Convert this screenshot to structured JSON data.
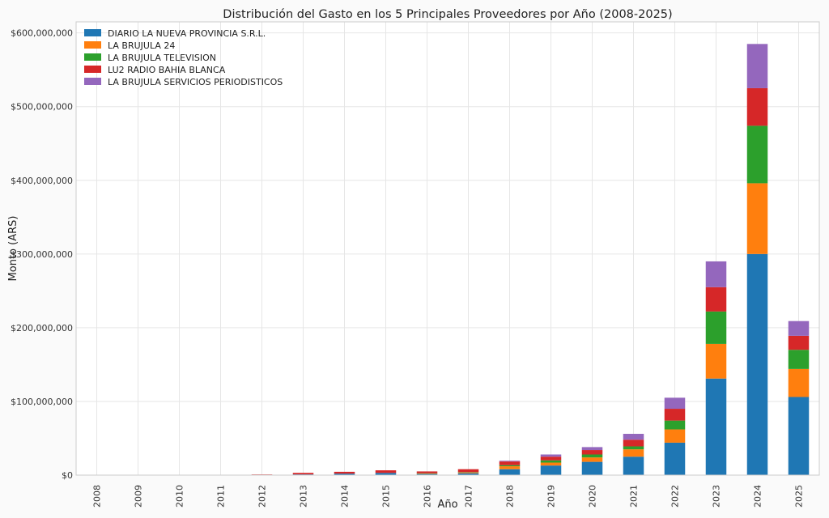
{
  "chart_data": {
    "type": "bar",
    "stacked": true,
    "title": "Distribución del Gasto en los 5 Principales Proveedores por Año (2008-2025)",
    "xlabel": "Año",
    "ylabel": "Monto (ARS)",
    "ylim": [
      0,
      615000000
    ],
    "yticks": [
      0,
      100000000,
      200000000,
      300000000,
      400000000,
      500000000,
      600000000
    ],
    "ytick_labels": [
      "$0",
      "$100,000,000",
      "$200,000,000",
      "$300,000,000",
      "$400,000,000",
      "$500,000,000",
      "$600,000,000"
    ],
    "grid": true,
    "legend_position": "top-left",
    "categories": [
      "2008",
      "2009",
      "2010",
      "2011",
      "2012",
      "2013",
      "2014",
      "2015",
      "2016",
      "2017",
      "2018",
      "2019",
      "2020",
      "2021",
      "2022",
      "2023",
      "2024",
      "2025"
    ],
    "series": [
      {
        "name": "DIARIO LA NUEVA PROVINCIA S.R.L.",
        "color": "#1f77b4",
        "values": [
          0,
          0,
          0,
          200000,
          400000,
          1000000,
          2000000,
          3000000,
          1500000,
          2500000,
          8000000,
          13000000,
          18000000,
          25000000,
          44000000,
          131000000,
          300000000,
          106000000
        ]
      },
      {
        "name": "LA BRUJULA 24",
        "color": "#ff7f0e",
        "values": [
          0,
          0,
          0,
          0,
          0,
          0,
          0,
          0,
          500000,
          1000000,
          4000000,
          4000000,
          6000000,
          10000000,
          18000000,
          47000000,
          96000000,
          38000000
        ]
      },
      {
        "name": "LA BRUJULA TELEVISION",
        "color": "#2ca02c",
        "values": [
          0,
          0,
          0,
          0,
          0,
          0,
          0,
          0,
          500000,
          500000,
          1500000,
          3000000,
          4000000,
          4000000,
          12000000,
          44000000,
          78000000,
          26000000
        ]
      },
      {
        "name": "LU2 RADIO BAHIA BLANCA",
        "color": "#d62728",
        "values": [
          0,
          0,
          0,
          300000,
          500000,
          2000000,
          2500000,
          3500000,
          2500000,
          4000000,
          5000000,
          5000000,
          6000000,
          9000000,
          16000000,
          33000000,
          51000000,
          19000000
        ]
      },
      {
        "name": "LA BRUJULA SERVICIOS PERIODISTICOS",
        "color": "#9467bd",
        "values": [
          0,
          0,
          0,
          0,
          0,
          0,
          0,
          0,
          0,
          0,
          1000000,
          3000000,
          4000000,
          8000000,
          15000000,
          35000000,
          60000000,
          20000000
        ]
      }
    ]
  }
}
